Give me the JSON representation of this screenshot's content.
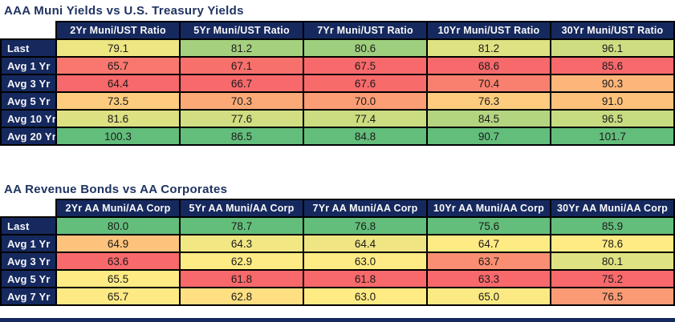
{
  "palette": {
    "navy_header_bg": "#16295E",
    "title_text": "#1F3361",
    "header_text": "#FAFAFA",
    "cell_text": "#1B1B1B",
    "grid_border": "#000000",
    "scale_min_red": "#F8696B",
    "scale_mid_yellow": "#FFEB84",
    "scale_max_green": "#63BE7B",
    "background": "#FFFFFF"
  },
  "tables": [
    {
      "title": "AAA Muni Yields vs U.S. Treasury Yields",
      "columns": [
        "2Yr Muni/UST Ratio",
        "5Yr Muni/UST Ratio",
        "7Yr Muni/UST Ratio",
        "10Yr Muni/UST Ratio",
        "30Yr Muni/UST Ratio"
      ],
      "rows": [
        {
          "label": "Last",
          "values": [
            "79.1",
            "81.2",
            "80.6",
            "81.2",
            "96.1"
          ],
          "colors": [
            "#EDE683",
            "#A5D17F",
            "#9ECF7E",
            "#DFE282",
            "#CEDD81"
          ]
        },
        {
          "label": "Avg 1 Yr",
          "values": [
            "65.7",
            "67.1",
            "67.5",
            "68.6",
            "85.6"
          ],
          "colors": [
            "#F9776E",
            "#F8706C",
            "#F8696B",
            "#F8696B",
            "#F8696B"
          ]
        },
        {
          "label": "Avg 3 Yr",
          "values": [
            "64.4",
            "66.7",
            "67.6",
            "70.4",
            "90.3"
          ],
          "colors": [
            "#F8696B",
            "#F8696B",
            "#F86B6B",
            "#F9806F",
            "#FCB67A"
          ]
        },
        {
          "label": "Avg 5 Yr",
          "values": [
            "73.5",
            "70.3",
            "70.0",
            "76.3",
            "91.0"
          ],
          "colors": [
            "#FDCC7E",
            "#FBAA77",
            "#FB9D75",
            "#FDCC7E",
            "#FDC17C"
          ]
        },
        {
          "label": "Avg 10 Yr",
          "values": [
            "81.6",
            "77.6",
            "77.4",
            "84.5",
            "96.5"
          ],
          "colors": [
            "#DDE182",
            "#D2DE81",
            "#CBDC81",
            "#B4D580",
            "#C7DB81"
          ]
        },
        {
          "label": "Avg 20 Yr",
          "values": [
            "100.3",
            "86.5",
            "84.8",
            "90.7",
            "101.7"
          ],
          "colors": [
            "#63BE7B",
            "#63BE7B",
            "#63BE7B",
            "#63BE7B",
            "#63BE7B"
          ]
        }
      ]
    },
    {
      "title": "AA Revenue Bonds vs AA Corporates",
      "columns": [
        "2Yr AA Muni/AA Corp",
        "5Yr AA Muni/AA Corp",
        "7Yr AA Muni/AA Corp",
        "10Yr AA Muni/AA Corp",
        "30Yr AA Muni/AA Corp"
      ],
      "rows": [
        {
          "label": "Last",
          "values": [
            "80.0",
            "78.7",
            "76.8",
            "75.6",
            "85.9"
          ],
          "colors": [
            "#63BE7B",
            "#63BE7B",
            "#63BE7B",
            "#63BE7B",
            "#63BE7B"
          ]
        },
        {
          "label": "Avg 1 Yr",
          "values": [
            "64.9",
            "64.3",
            "64.4",
            "64.7",
            "78.6"
          ],
          "colors": [
            "#FDC27C",
            "#F1E783",
            "#EFE683",
            "#FFEB84",
            "#FFEB84"
          ]
        },
        {
          "label": "Avg 3 Yr",
          "values": [
            "63.6",
            "62.9",
            "63.0",
            "63.7",
            "80.1"
          ],
          "colors": [
            "#F8696B",
            "#FFEB84",
            "#FFEB84",
            "#FA8E72",
            "#DFE282"
          ]
        },
        {
          "label": "Avg 5 Yr",
          "values": [
            "65.5",
            "61.8",
            "61.8",
            "63.3",
            "75.2"
          ],
          "colors": [
            "#FFEB84",
            "#F8696B",
            "#F8696B",
            "#F8696B",
            "#F8696B"
          ]
        },
        {
          "label": "Avg 7 Yr",
          "values": [
            "65.7",
            "62.8",
            "63.0",
            "65.0",
            "76.5"
          ],
          "colors": [
            "#FDEA84",
            "#FEDF82",
            "#FFEB84",
            "#FBEA84",
            "#FB9B75"
          ]
        }
      ]
    }
  ],
  "chart_data": [
    {
      "type": "heatmap",
      "title": "AAA Muni Yields vs U.S. Treasury Yields",
      "columns": [
        "2Yr Muni/UST Ratio",
        "5Yr Muni/UST Ratio",
        "7Yr Muni/UST Ratio",
        "10Yr Muni/UST Ratio",
        "30Yr Muni/UST Ratio"
      ],
      "row_labels": [
        "Last",
        "Avg 1 Yr",
        "Avg 3 Yr",
        "Avg 5 Yr",
        "Avg 10 Yr",
        "Avg 20 Yr"
      ],
      "values": [
        [
          79.1,
          81.2,
          80.6,
          81.2,
          96.1
        ],
        [
          65.7,
          67.1,
          67.5,
          68.6,
          85.6
        ],
        [
          64.4,
          66.7,
          67.6,
          70.4,
          90.3
        ],
        [
          73.5,
          70.3,
          70.0,
          76.3,
          91.0
        ],
        [
          81.6,
          77.6,
          77.4,
          84.5,
          96.5
        ],
        [
          100.3,
          86.5,
          84.8,
          90.7,
          101.7
        ]
      ],
      "colorscale": "per-column red(min) -> yellow(median) -> green(max)"
    },
    {
      "type": "heatmap",
      "title": "AA Revenue Bonds vs AA Corporates",
      "columns": [
        "2Yr AA Muni/AA Corp",
        "5Yr AA Muni/AA Corp",
        "7Yr AA Muni/AA Corp",
        "10Yr AA Muni/AA Corp",
        "30Yr AA Muni/AA Corp"
      ],
      "row_labels": [
        "Last",
        "Avg 1 Yr",
        "Avg 3 Yr",
        "Avg 5 Yr",
        "Avg 7 Yr"
      ],
      "values": [
        [
          80.0,
          78.7,
          76.8,
          75.6,
          85.9
        ],
        [
          64.9,
          64.3,
          64.4,
          64.7,
          78.6
        ],
        [
          63.6,
          62.9,
          63.0,
          63.7,
          80.1
        ],
        [
          65.5,
          61.8,
          61.8,
          63.3,
          75.2
        ],
        [
          65.7,
          62.8,
          63.0,
          65.0,
          76.5
        ]
      ],
      "colorscale": "per-column red(min) -> yellow(median) -> green(max)"
    }
  ]
}
